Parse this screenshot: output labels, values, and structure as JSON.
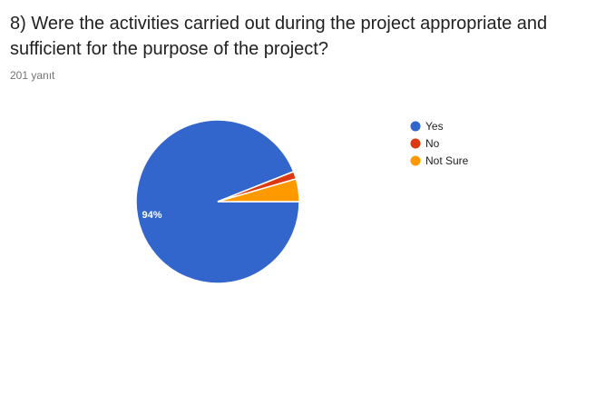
{
  "question": {
    "title": "8) Were the activities carried out during the project appropriate and sufficient for the purpose of the project?",
    "response_count": "201 yanıt"
  },
  "chart_data": {
    "type": "pie",
    "title": "8) Were the activities carried out during the project appropriate and sufficient for the purpose of the project?",
    "categories": [
      "Yes",
      "No",
      "Not Sure"
    ],
    "values": [
      94,
      1.5,
      4.5
    ],
    "data_labels": [
      "94%",
      "",
      ""
    ],
    "colors": [
      "#3366cc",
      "#dc3912",
      "#ff9900"
    ],
    "legend_position": "right"
  }
}
